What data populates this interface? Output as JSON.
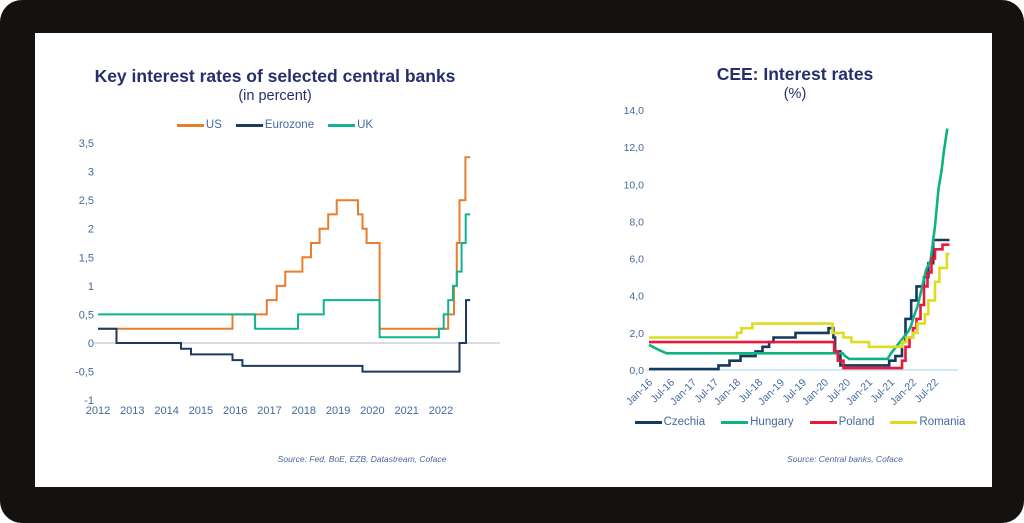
{
  "colors": {
    "frame_background": "#14110F",
    "panel_background": "#FFFFFF",
    "title_text": "#262F6D",
    "axis_label_text": "#44699D"
  },
  "chart_data": [
    {
      "type": "line",
      "title": "Key interest rates of selected central banks",
      "subtitle": "(in percent)",
      "source": "Source: Fed, BoE, EZB, Datastream, Coface",
      "legend_position": "top",
      "grid": false,
      "xlim": [
        2012,
        2022.9
      ],
      "ylim": [
        -1,
        3.5
      ],
      "zero_line_color": "#C3C9D2",
      "y_ticks": {
        "values": [
          3.5,
          3,
          2.5,
          2,
          1.5,
          1,
          0.5,
          0,
          -0.5,
          -1
        ],
        "labels": [
          "3,5",
          "3",
          "2,5",
          "2",
          "1,5",
          "1",
          "0,5",
          "0",
          "-0,5",
          "-1"
        ]
      },
      "x_ticks": {
        "values": [
          2012,
          2013,
          2014,
          2015,
          2016,
          2017,
          2018,
          2019,
          2020,
          2021,
          2022
        ],
        "labels": [
          "2012",
          "2013",
          "2014",
          "2015",
          "2016",
          "2017",
          "2018",
          "2019",
          "2020",
          "2021",
          "2022"
        ],
        "rotated": false
      },
      "series": [
        {
          "name": "US",
          "color": "#E87D2E",
          "interp": "step",
          "points": [
            [
              2012.0,
              0.25
            ],
            [
              2015.92,
              0.5
            ],
            [
              2016.92,
              0.75
            ],
            [
              2017.21,
              1.0
            ],
            [
              2017.46,
              1.25
            ],
            [
              2017.96,
              1.5
            ],
            [
              2018.21,
              1.75
            ],
            [
              2018.46,
              2.0
            ],
            [
              2018.71,
              2.25
            ],
            [
              2018.96,
              2.5
            ],
            [
              2019.58,
              2.25
            ],
            [
              2019.71,
              2.0
            ],
            [
              2019.83,
              1.75
            ],
            [
              2020.21,
              0.25
            ],
            [
              2022.21,
              0.5
            ],
            [
              2022.38,
              1.0
            ],
            [
              2022.46,
              1.75
            ],
            [
              2022.54,
              2.5
            ],
            [
              2022.71,
              3.25
            ],
            [
              2022.85,
              3.25
            ]
          ]
        },
        {
          "name": "Eurozone",
          "color": "#1E3A5F",
          "interp": "step",
          "points": [
            [
              2012.0,
              0.25
            ],
            [
              2012.54,
              0.0
            ],
            [
              2014.42,
              -0.1
            ],
            [
              2014.71,
              -0.2
            ],
            [
              2015.92,
              -0.3
            ],
            [
              2016.21,
              -0.4
            ],
            [
              2019.71,
              -0.5
            ],
            [
              2022.54,
              0.0
            ],
            [
              2022.73,
              0.75
            ],
            [
              2022.85,
              0.75
            ]
          ]
        },
        {
          "name": "UK",
          "color": "#12B392",
          "interp": "step",
          "points": [
            [
              2012.0,
              0.5
            ],
            [
              2016.58,
              0.25
            ],
            [
              2017.83,
              0.5
            ],
            [
              2018.58,
              0.75
            ],
            [
              2020.21,
              0.1
            ],
            [
              2021.94,
              0.25
            ],
            [
              2022.08,
              0.5
            ],
            [
              2022.21,
              0.75
            ],
            [
              2022.35,
              1.0
            ],
            [
              2022.46,
              1.25
            ],
            [
              2022.6,
              1.75
            ],
            [
              2022.72,
              2.25
            ],
            [
              2022.85,
              2.25
            ]
          ]
        }
      ]
    },
    {
      "type": "line",
      "title": "CEE: Interest rates",
      "subtitle": "(%)",
      "source": "Source: Central banks, Coface",
      "legend_position": "bottom",
      "grid": false,
      "xlim": [
        2016,
        2022.9
      ],
      "ylim": [
        0,
        14
      ],
      "zero_line_color": "#B5DDF1",
      "y_ticks": {
        "values": [
          14,
          12,
          10,
          8,
          6,
          4,
          2,
          0
        ],
        "labels": [
          "14,0",
          "12,0",
          "10,0",
          "8,0",
          "6,0",
          "4,0",
          "2,0",
          "0,0"
        ]
      },
      "x_ticks": {
        "values": [
          2016.0,
          2016.5,
          2017.0,
          2017.5,
          2018.0,
          2018.5,
          2019.0,
          2019.5,
          2020.0,
          2020.5,
          2021.0,
          2021.5,
          2022.0,
          2022.5
        ],
        "labels": [
          "Jan-16",
          "Jul-16",
          "Jan-17",
          "Jul-17",
          "Jan-18",
          "Jul-18",
          "Jan-19",
          "Jul-19",
          "Jan-20",
          "Jul-20",
          "Jan-21",
          "Jul-21",
          "Jan-22",
          "Jul-22"
        ],
        "rotated": true
      },
      "series": [
        {
          "name": "Czechia",
          "color": "#16395E",
          "interp": "step",
          "points": [
            [
              2016.0,
              0.05
            ],
            [
              2017.58,
              0.25
            ],
            [
              2017.83,
              0.5
            ],
            [
              2018.08,
              0.75
            ],
            [
              2018.42,
              1.0
            ],
            [
              2018.58,
              1.25
            ],
            [
              2018.73,
              1.5
            ],
            [
              2018.83,
              1.75
            ],
            [
              2019.33,
              2.0
            ],
            [
              2020.08,
              2.25
            ],
            [
              2020.19,
              1.75
            ],
            [
              2020.23,
              1.0
            ],
            [
              2020.35,
              0.25
            ],
            [
              2021.46,
              0.5
            ],
            [
              2021.6,
              0.75
            ],
            [
              2021.75,
              1.5
            ],
            [
              2021.83,
              2.75
            ],
            [
              2021.96,
              3.75
            ],
            [
              2022.08,
              4.5
            ],
            [
              2022.25,
              5.0
            ],
            [
              2022.35,
              5.75
            ],
            [
              2022.46,
              7.0
            ],
            [
              2022.83,
              7.0
            ]
          ]
        },
        {
          "name": "Hungary",
          "color": "#0EB283",
          "interp": "linear",
          "points": [
            [
              2016.0,
              1.35
            ],
            [
              2016.12,
              1.2
            ],
            [
              2016.25,
              1.05
            ],
            [
              2016.4,
              0.9
            ],
            [
              2020.4,
              0.9
            ],
            [
              2020.46,
              0.75
            ],
            [
              2020.55,
              0.6
            ],
            [
              2021.42,
              0.6
            ],
            [
              2021.5,
              0.9
            ],
            [
              2021.6,
              1.2
            ],
            [
              2021.7,
              1.5
            ],
            [
              2021.8,
              1.8
            ],
            [
              2021.9,
              2.1
            ],
            [
              2021.96,
              2.4
            ],
            [
              2022.02,
              2.9
            ],
            [
              2022.1,
              3.4
            ],
            [
              2022.2,
              4.4
            ],
            [
              2022.3,
              5.4
            ],
            [
              2022.4,
              5.9
            ],
            [
              2022.5,
              7.75
            ],
            [
              2022.58,
              9.75
            ],
            [
              2022.65,
              10.75
            ],
            [
              2022.7,
              11.75
            ],
            [
              2022.78,
              13.0
            ]
          ]
        },
        {
          "name": "Poland",
          "color": "#E8193C",
          "interp": "step",
          "points": [
            [
              2016.0,
              1.5
            ],
            [
              2020.21,
              1.0
            ],
            [
              2020.29,
              0.5
            ],
            [
              2020.42,
              0.1
            ],
            [
              2021.75,
              0.5
            ],
            [
              2021.83,
              1.25
            ],
            [
              2021.92,
              1.75
            ],
            [
              2022.0,
              2.25
            ],
            [
              2022.08,
              2.75
            ],
            [
              2022.17,
              3.5
            ],
            [
              2022.25,
              4.5
            ],
            [
              2022.33,
              5.25
            ],
            [
              2022.42,
              6.0
            ],
            [
              2022.5,
              6.5
            ],
            [
              2022.67,
              6.75
            ],
            [
              2022.83,
              6.75
            ]
          ]
        },
        {
          "name": "Romania",
          "color": "#DFDB20",
          "interp": "step",
          "points": [
            [
              2016.0,
              1.75
            ],
            [
              2018.0,
              2.0
            ],
            [
              2018.1,
              2.25
            ],
            [
              2018.35,
              2.5
            ],
            [
              2020.17,
              2.0
            ],
            [
              2020.42,
              1.75
            ],
            [
              2020.6,
              1.5
            ],
            [
              2021.0,
              1.25
            ],
            [
              2021.75,
              1.5
            ],
            [
              2021.85,
              1.75
            ],
            [
              2022.0,
              2.0
            ],
            [
              2022.1,
              2.5
            ],
            [
              2022.27,
              3.0
            ],
            [
              2022.35,
              3.75
            ],
            [
              2022.5,
              4.75
            ],
            [
              2022.6,
              5.5
            ],
            [
              2022.77,
              6.25
            ],
            [
              2022.83,
              6.25
            ]
          ]
        }
      ]
    }
  ]
}
